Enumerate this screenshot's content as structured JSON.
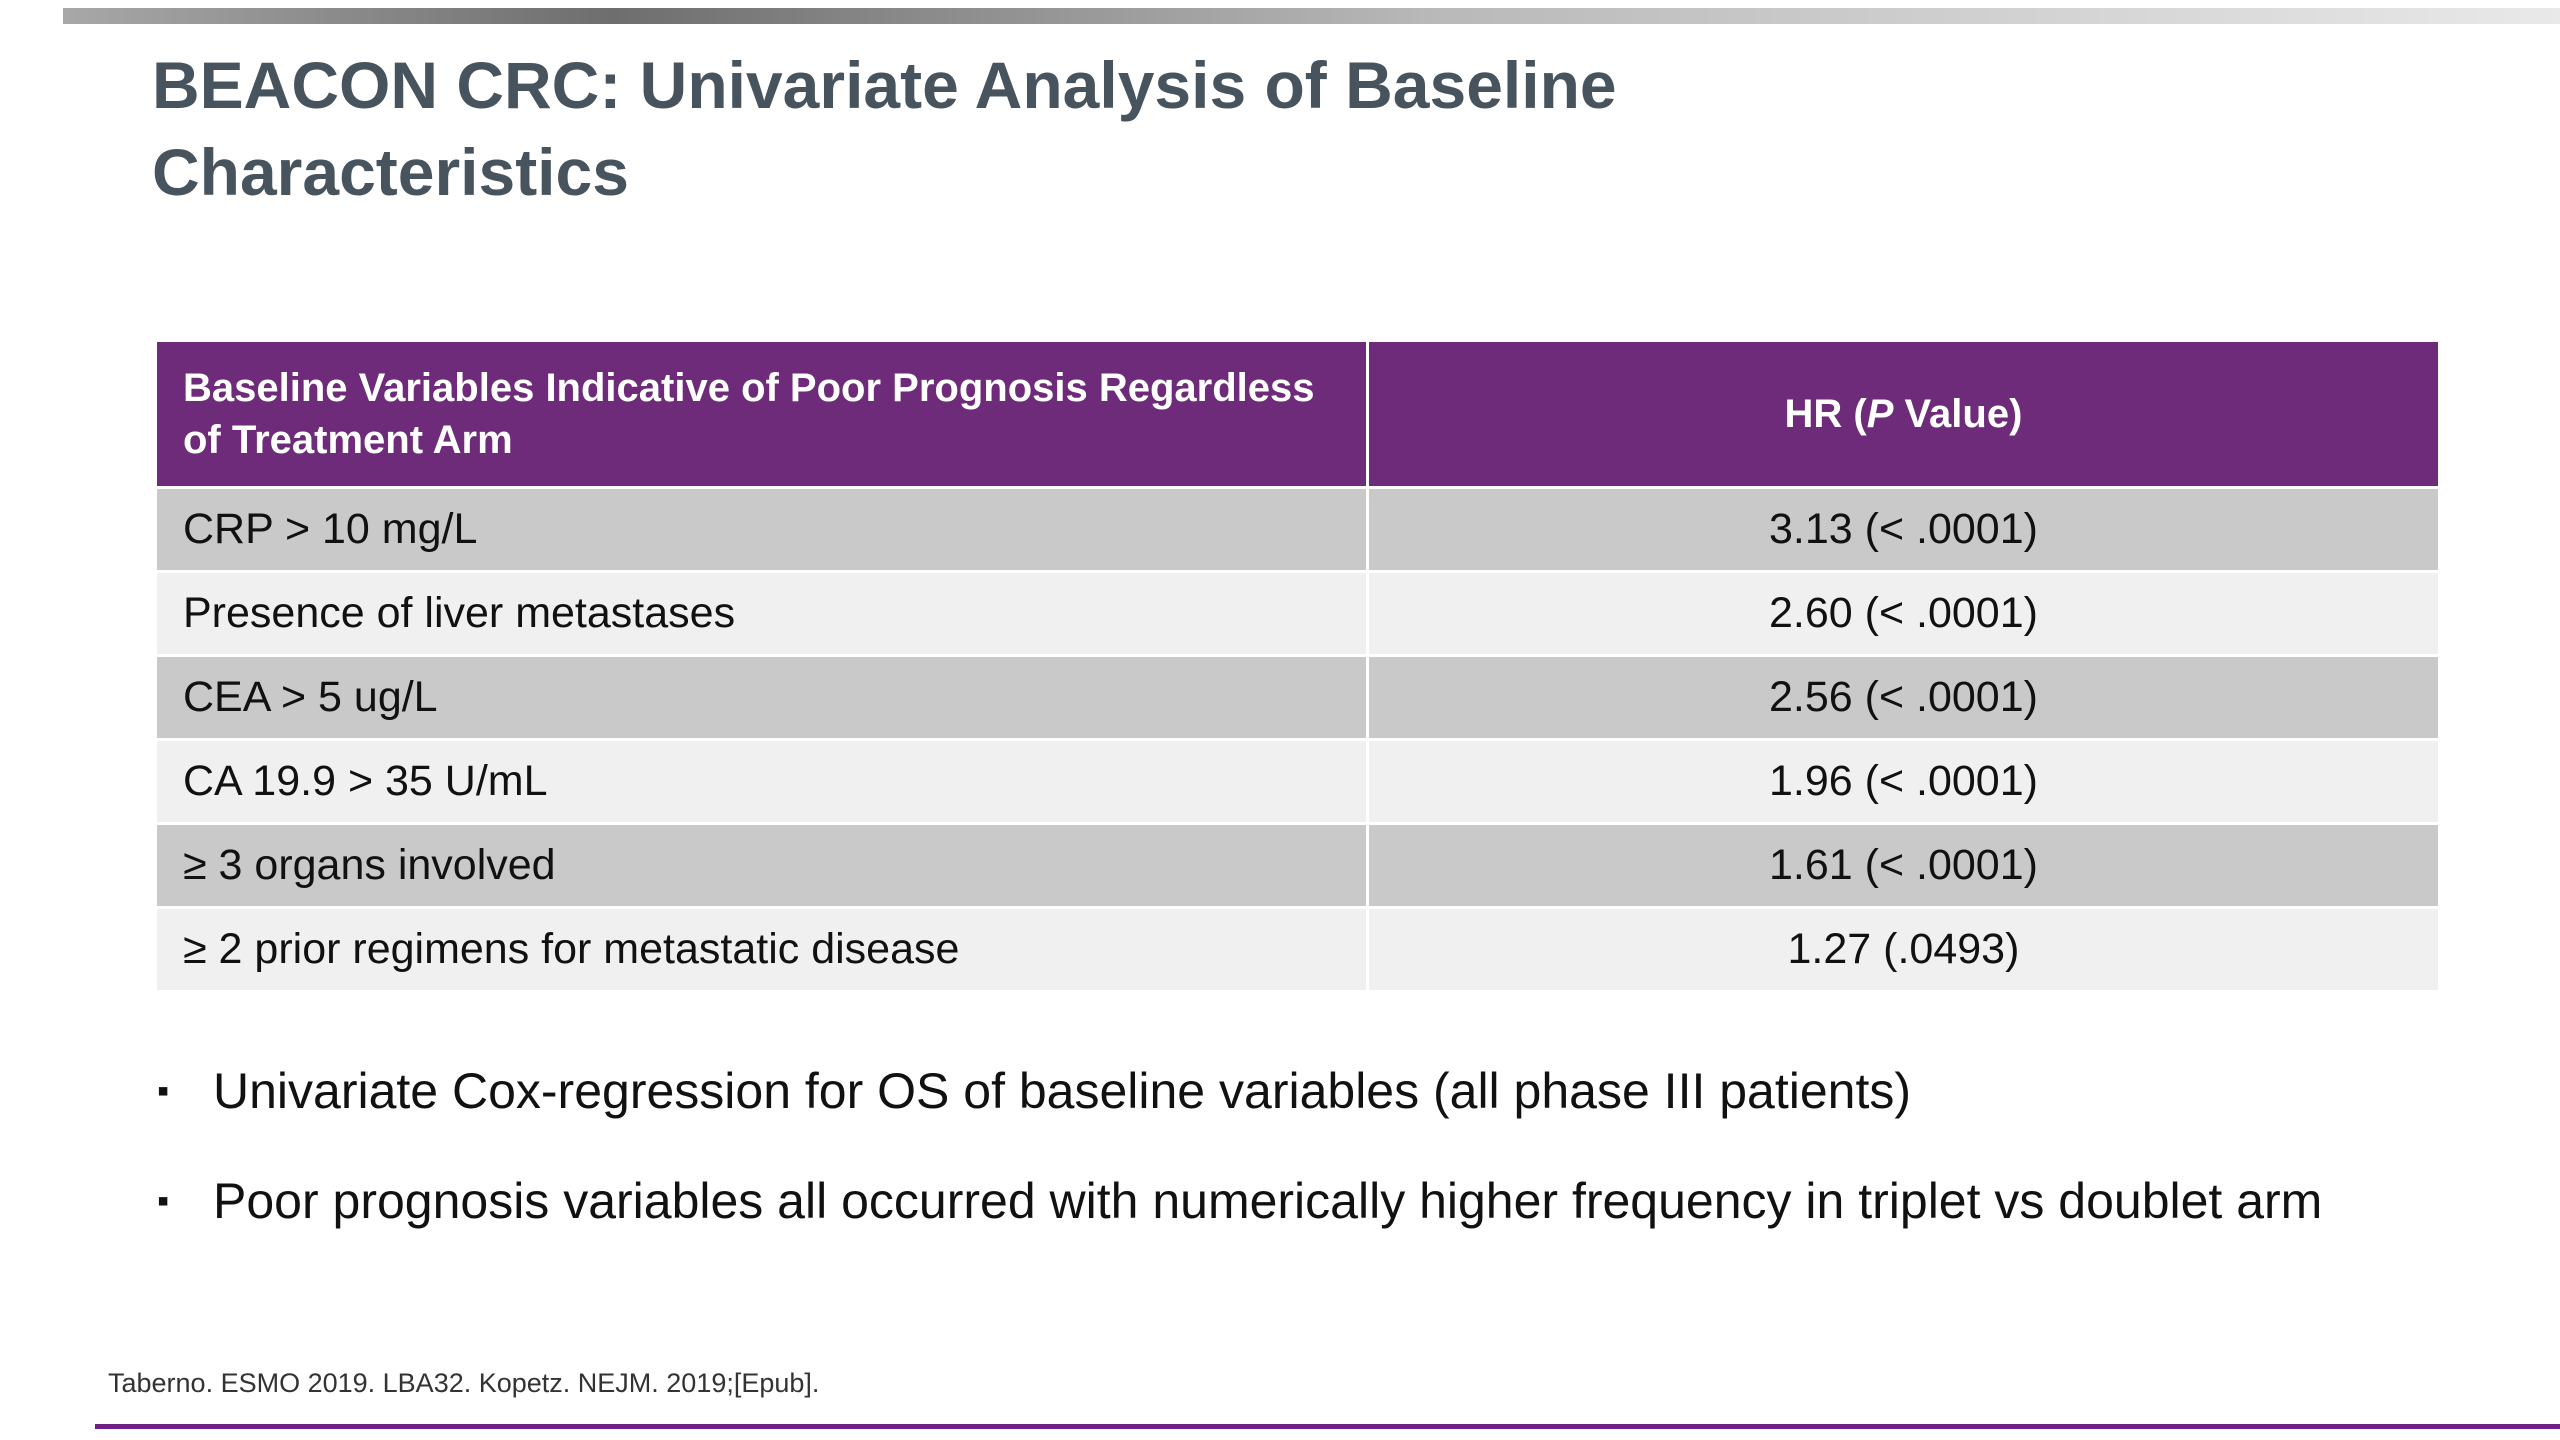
{
  "slide": {
    "title": "BEACON CRC: Univariate Analysis of Baseline Characteristics",
    "footnote": "Taberno. ESMO 2019. LBA32. Kopetz. NEJM. 2019;[Epub]."
  },
  "table": {
    "header": {
      "variables_label": "Baseline Variables Indicative of Poor Prognosis Regardless of Treatment Arm",
      "hr_prefix": "HR (",
      "hr_italic": "P",
      "hr_suffix": " Value)"
    },
    "rows": [
      {
        "variable": "CRP > 10 mg/L",
        "hr": "3.13 (< .0001)"
      },
      {
        "variable": "Presence of liver metastases",
        "hr": "2.60 (< .0001)"
      },
      {
        "variable": "CEA > 5 ug/L",
        "hr": "2.56 (< .0001)"
      },
      {
        "variable": "CA 19.9 > 35 U/mL",
        "hr": "1.96 (< .0001)"
      },
      {
        "variable": "≥ 3 organs involved",
        "hr": "1.61 (< .0001)"
      },
      {
        "variable": "≥ 2 prior regimens for metastatic disease",
        "hr": "1.27 (.0493)"
      }
    ]
  },
  "bullets": [
    "Univariate Cox-regression for OS of baseline variables (all phase III patients)",
    "Poor prognosis variables all occurred with numerically higher frequency in triplet vs doublet arm"
  ],
  "bullet_glyph": "▪",
  "colors": {
    "header_purple": "#6e2b7a",
    "row_dark": "#c9c9c9",
    "row_light": "#f0f0f0",
    "title_color": "#47545e",
    "accent_line": "#702082"
  }
}
